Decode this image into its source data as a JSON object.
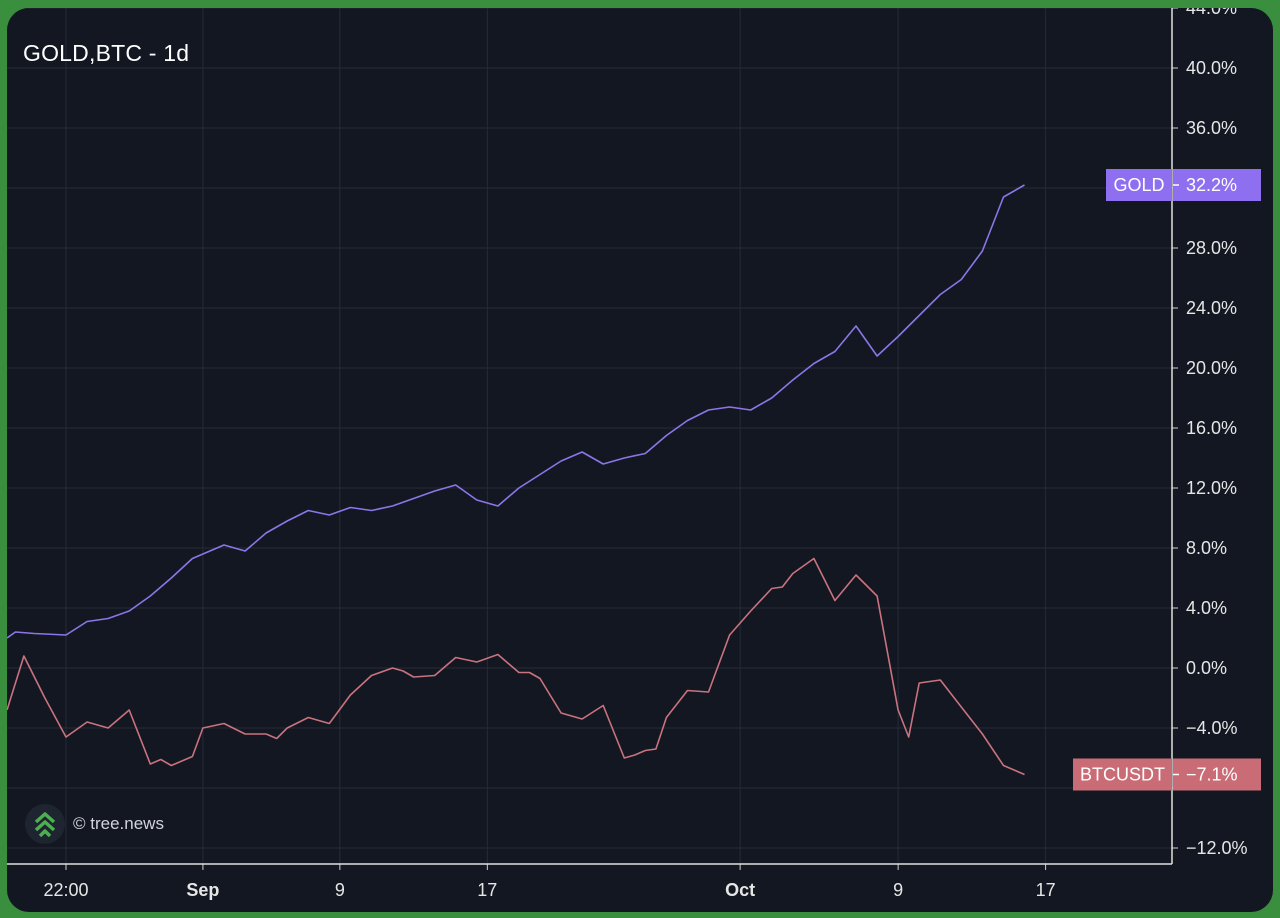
{
  "chart_data": {
    "type": "line",
    "title": "GOLD,BTC - 1d",
    "watermark": "© tree.news",
    "y_axis": {
      "ylim": [
        -14.0,
        44.0
      ],
      "unit": "%",
      "ticks": [
        {
          "value": 44,
          "label": "44.0%"
        },
        {
          "value": 40,
          "label": "40.0%"
        },
        {
          "value": 36,
          "label": "36.0%"
        },
        {
          "value": 32,
          "label": ""
        },
        {
          "value": 28,
          "label": "28.0%"
        },
        {
          "value": 24,
          "label": "24.0%"
        },
        {
          "value": 20,
          "label": "20.0%"
        },
        {
          "value": 16,
          "label": "16.0%"
        },
        {
          "value": 12,
          "label": "12.0%"
        },
        {
          "value": 8,
          "label": "8.0%"
        },
        {
          "value": 4,
          "label": "4.0%"
        },
        {
          "value": 0,
          "label": "0.0%"
        },
        {
          "value": -4,
          "label": "−4.0%"
        },
        {
          "value": -8,
          "label": ""
        },
        {
          "value": -12,
          "label": "−12.0%"
        }
      ]
    },
    "x_axis": {
      "xlim": [
        -0.3,
        55
      ],
      "ticks": [
        {
          "x": 2.5,
          "label": "22:00",
          "major": false
        },
        {
          "x": 9.0,
          "label": "Sep",
          "major": true
        },
        {
          "x": 15.5,
          "label": "9",
          "major": false
        },
        {
          "x": 22.5,
          "label": "17",
          "major": false
        },
        {
          "x": 34.5,
          "label": "Oct",
          "major": true
        },
        {
          "x": 42.0,
          "label": "9",
          "major": false
        },
        {
          "x": 49.0,
          "label": "17",
          "major": false
        }
      ]
    },
    "grid": true,
    "series": [
      {
        "name": "GOLD",
        "color": "#8b76e8",
        "tag_color": "#8e6ff0",
        "last_value_label": "32.2%",
        "points": [
          [
            -0.3,
            2.0
          ],
          [
            0.1,
            2.4
          ],
          [
            1.0,
            2.3
          ],
          [
            2.5,
            2.2
          ],
          [
            3.5,
            3.1
          ],
          [
            4.5,
            3.3
          ],
          [
            5.5,
            3.8
          ],
          [
            6.5,
            4.8
          ],
          [
            7.5,
            6.0
          ],
          [
            8.5,
            7.3
          ],
          [
            9.0,
            7.6
          ],
          [
            10.0,
            8.2
          ],
          [
            11.0,
            7.8
          ],
          [
            12.0,
            9.0
          ],
          [
            13.0,
            9.8
          ],
          [
            14.0,
            10.5
          ],
          [
            15.0,
            10.2
          ],
          [
            16.0,
            10.7
          ],
          [
            17.0,
            10.5
          ],
          [
            18.0,
            10.8
          ],
          [
            19.0,
            11.3
          ],
          [
            20.0,
            11.8
          ],
          [
            21.0,
            12.2
          ],
          [
            22.0,
            11.2
          ],
          [
            23.0,
            10.8
          ],
          [
            24.0,
            12.0
          ],
          [
            25.0,
            12.9
          ],
          [
            26.0,
            13.8
          ],
          [
            27.0,
            14.4
          ],
          [
            28.0,
            13.6
          ],
          [
            29.0,
            14.0
          ],
          [
            30.0,
            14.3
          ],
          [
            31.0,
            15.5
          ],
          [
            32.0,
            16.5
          ],
          [
            33.0,
            17.2
          ],
          [
            34.0,
            17.4
          ],
          [
            35.0,
            17.2
          ],
          [
            36.0,
            18.0
          ],
          [
            37.0,
            19.2
          ],
          [
            38.0,
            20.3
          ],
          [
            39.0,
            21.1
          ],
          [
            40.0,
            22.8
          ],
          [
            41.0,
            20.8
          ],
          [
            42.0,
            22.1
          ],
          [
            43.0,
            23.5
          ],
          [
            44.0,
            24.9
          ],
          [
            45.0,
            25.9
          ],
          [
            46.0,
            27.8
          ],
          [
            47.0,
            31.4
          ],
          [
            48.0,
            32.2
          ]
        ]
      },
      {
        "name": "BTCUSDT",
        "color": "#c9737e",
        "tag_color": "#c96c76",
        "last_value_label": "−7.1%",
        "points": [
          [
            -0.3,
            -2.8
          ],
          [
            0.5,
            0.8
          ],
          [
            1.5,
            -2.0
          ],
          [
            2.5,
            -4.6
          ],
          [
            3.5,
            -3.6
          ],
          [
            4.5,
            -4.0
          ],
          [
            5.5,
            -2.8
          ],
          [
            6.5,
            -6.4
          ],
          [
            7.0,
            -6.1
          ],
          [
            7.5,
            -6.5
          ],
          [
            8.5,
            -5.9
          ],
          [
            9.0,
            -4.0
          ],
          [
            10.0,
            -3.7
          ],
          [
            11.0,
            -4.4
          ],
          [
            12.0,
            -4.4
          ],
          [
            12.5,
            -4.7
          ],
          [
            13.0,
            -4.0
          ],
          [
            14.0,
            -3.3
          ],
          [
            15.0,
            -3.7
          ],
          [
            16.0,
            -1.8
          ],
          [
            17.0,
            -0.5
          ],
          [
            18.0,
            0.0
          ],
          [
            18.5,
            -0.2
          ],
          [
            19.0,
            -0.6
          ],
          [
            20.0,
            -0.5
          ],
          [
            21.0,
            0.7
          ],
          [
            22.0,
            0.4
          ],
          [
            23.0,
            0.9
          ],
          [
            24.0,
            -0.3
          ],
          [
            24.5,
            -0.3
          ],
          [
            25.0,
            -0.7
          ],
          [
            26.0,
            -3.0
          ],
          [
            27.0,
            -3.4
          ],
          [
            28.0,
            -2.5
          ],
          [
            29.0,
            -6.0
          ],
          [
            29.5,
            -5.8
          ],
          [
            30.0,
            -5.5
          ],
          [
            30.5,
            -5.4
          ],
          [
            31.0,
            -3.3
          ],
          [
            32.0,
            -1.5
          ],
          [
            33.0,
            -1.6
          ],
          [
            34.0,
            2.2
          ],
          [
            35.0,
            3.8
          ],
          [
            36.0,
            5.3
          ],
          [
            36.5,
            5.4
          ],
          [
            37.0,
            6.3
          ],
          [
            38.0,
            7.3
          ],
          [
            39.0,
            4.5
          ],
          [
            40.0,
            6.2
          ],
          [
            41.0,
            4.8
          ],
          [
            42.0,
            -2.8
          ],
          [
            42.5,
            -4.6
          ],
          [
            43.0,
            -1.0
          ],
          [
            44.0,
            -0.8
          ],
          [
            45.0,
            -2.6
          ],
          [
            46.0,
            -4.4
          ],
          [
            47.0,
            -6.5
          ],
          [
            48.0,
            -7.1
          ]
        ]
      }
    ]
  }
}
